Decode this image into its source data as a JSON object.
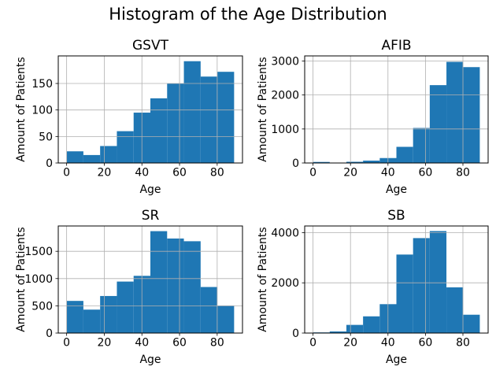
{
  "figure": {
    "suptitle": "Histogram of the Age Distribution",
    "background": "#ffffff"
  },
  "colors": {
    "bar": "#1f77b4",
    "grid": "#b0b0b0",
    "axis": "#000000",
    "text": "#000000"
  },
  "chart_data": [
    {
      "type": "bar",
      "subtype": "histogram",
      "title": "GSVT",
      "xlabel": "Age",
      "ylabel": "Amount of Patients",
      "bin_start": 0,
      "bin_width": 8.9,
      "values": [
        22,
        15,
        32,
        60,
        95,
        122,
        150,
        192,
        163,
        172
      ],
      "xticks": [
        0,
        20,
        40,
        60,
        80
      ],
      "yticks": [
        0,
        50,
        100,
        150
      ],
      "xlim": [
        -4.45,
        93.45
      ],
      "ylim": [
        0,
        202
      ],
      "grid": true,
      "legend": false
    },
    {
      "type": "bar",
      "subtype": "histogram",
      "title": "AFIB",
      "xlabel": "Age",
      "ylabel": "Amount of Patients",
      "bin_start": 0,
      "bin_width": 8.9,
      "values": [
        30,
        10,
        35,
        70,
        145,
        475,
        1030,
        2290,
        2975,
        2820
      ],
      "xticks": [
        0,
        20,
        40,
        60,
        80
      ],
      "yticks": [
        0,
        1000,
        2000,
        3000
      ],
      "xlim": [
        -4.45,
        93.45
      ],
      "ylim": [
        0,
        3150
      ],
      "grid": true,
      "legend": false
    },
    {
      "type": "bar",
      "subtype": "histogram",
      "title": "SR",
      "xlabel": "Age",
      "ylabel": "Amount of Patients",
      "bin_start": 0,
      "bin_width": 8.9,
      "values": [
        590,
        430,
        680,
        945,
        1050,
        1870,
        1735,
        1685,
        845,
        500
      ],
      "xticks": [
        0,
        20,
        40,
        60,
        80
      ],
      "yticks": [
        0,
        500,
        1000,
        1500
      ],
      "xlim": [
        -4.45,
        93.45
      ],
      "ylim": [
        0,
        1965
      ],
      "grid": true,
      "legend": false
    },
    {
      "type": "bar",
      "subtype": "histogram",
      "title": "SB",
      "xlabel": "Age",
      "ylabel": "Amount of Patients",
      "bin_start": 0,
      "bin_width": 8.9,
      "values": [
        25,
        65,
        325,
        665,
        1150,
        3125,
        3780,
        4060,
        1820,
        730
      ],
      "xticks": [
        0,
        20,
        40,
        60,
        80
      ],
      "yticks": [
        0,
        2000,
        4000
      ],
      "xlim": [
        -4.45,
        93.45
      ],
      "ylim": [
        0,
        4263
      ],
      "grid": true,
      "legend": false
    }
  ]
}
